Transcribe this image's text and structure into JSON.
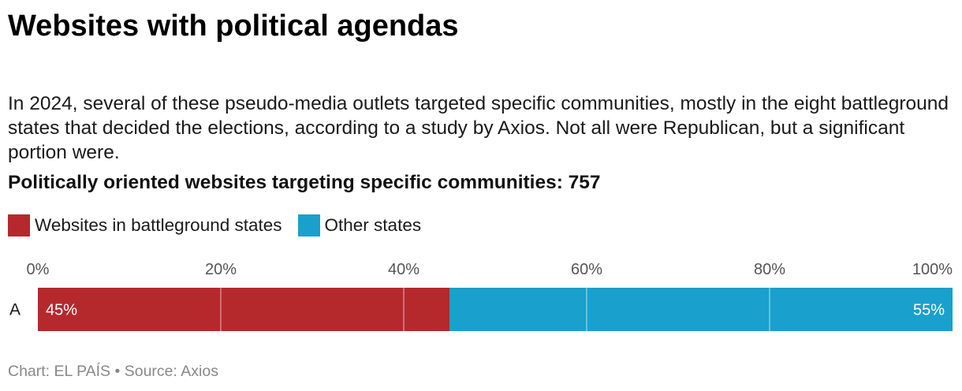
{
  "header": {
    "title": "Websites with political agendas",
    "description": "In 2024, several of these pseudo-media outlets targeted specific communities, mostly in the eight battleground states that decided the elections, according to a study by Axios. Not all were Republican, but a significant portion were.",
    "subtitle": "Politically oriented websites targeting specific communities: 757"
  },
  "footer": {
    "source": "Chart: EL PAÍS • Source: Axios"
  },
  "chart_data": {
    "type": "bar",
    "orientation": "horizontal",
    "stacked": true,
    "normalized": true,
    "categories": [
      "A"
    ],
    "series": [
      {
        "name": "Websites in battleground states",
        "values": [
          45
        ],
        "labels": [
          "45%"
        ],
        "color": "#b5292d"
      },
      {
        "name": "Other states",
        "values": [
          55
        ],
        "labels": [
          "55%"
        ],
        "color": "#1aa0cc"
      }
    ],
    "xlim": [
      0,
      100
    ],
    "xticks": [
      0,
      20,
      40,
      60,
      80,
      100
    ],
    "xtick_labels": [
      "0%",
      "20%",
      "40%",
      "60%",
      "80%",
      "100%"
    ],
    "grid": true,
    "legend_position": "top-left"
  }
}
